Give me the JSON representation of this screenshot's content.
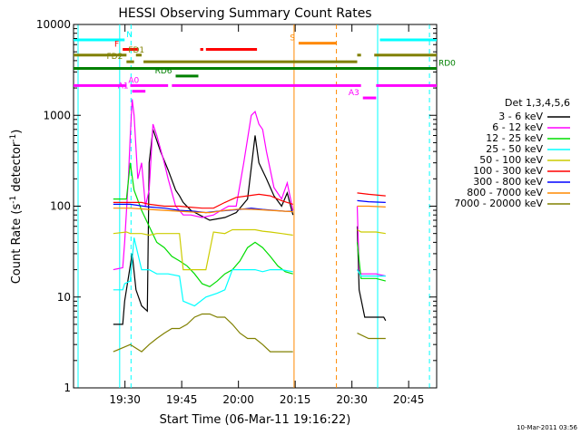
{
  "chart_data": {
    "type": "line",
    "title": "HESSI Observing Summary Count Rates",
    "xlabel": "Start Time (06-Mar-11 19:16:22)",
    "ylabel_main": "Count Rate (s",
    "ylabel_sup1": "-1",
    "ylabel_mid": " detector",
    "ylabel_sup2": "-1",
    "ylabel_end": ")",
    "y_scale": "log",
    "ylim": [
      1,
      10000
    ],
    "xlim_minutes": [
      0,
      96
    ],
    "x_ticks": [
      {
        "label": "19:30",
        "min": 13.6
      },
      {
        "label": "19:45",
        "min": 28.6
      },
      {
        "label": "20:00",
        "min": 43.6
      },
      {
        "label": "20:15",
        "min": 58.6
      },
      {
        "label": "20:30",
        "min": 73.6
      },
      {
        "label": "20:45",
        "min": 88.6
      }
    ],
    "y_ticks": [
      {
        "label": "1",
        "value": 1
      },
      {
        "label": "10",
        "value": 10
      },
      {
        "label": "100",
        "value": 100
      },
      {
        "label": "1000",
        "value": 1000
      },
      {
        "label": "10000",
        "value": 10000
      }
    ],
    "legend_title": "Det 1,3,4,5,6",
    "legend_position": "right",
    "series": [
      {
        "name": "3 - 6 keV",
        "color": "#000000",
        "points": [
          [
            10.5,
            5
          ],
          [
            13,
            5
          ],
          [
            13.5,
            9
          ],
          [
            15.5,
            30
          ],
          [
            16.5,
            12
          ],
          [
            18,
            8
          ],
          [
            19.5,
            7
          ],
          [
            20,
            300
          ],
          [
            21,
            700
          ],
          [
            23,
            400
          ],
          [
            25,
            250
          ],
          [
            27,
            150
          ],
          [
            28,
            130
          ],
          [
            29,
            110
          ],
          [
            31,
            90
          ],
          [
            36,
            70
          ],
          [
            40,
            75
          ],
          [
            43,
            85
          ],
          [
            46,
            120
          ],
          [
            48,
            600
          ],
          [
            49,
            300
          ],
          [
            51,
            200
          ],
          [
            53,
            130
          ],
          [
            55,
            100
          ],
          [
            56.5,
            140
          ],
          [
            58,
            80
          ],
          [
            75,
            60
          ],
          [
            75.5,
            12
          ],
          [
            77,
            6
          ],
          [
            82,
            6
          ],
          [
            82.5,
            5.5
          ]
        ],
        "gaps_after_min": [
          58
        ]
      },
      {
        "name": "6 - 12 keV",
        "color": "#ff00ff",
        "points": [
          [
            10.5,
            20
          ],
          [
            13,
            21
          ],
          [
            13.5,
            40
          ],
          [
            14.5,
            200
          ],
          [
            15,
            600
          ],
          [
            15.5,
            1500
          ],
          [
            16,
            1000
          ],
          [
            17,
            200
          ],
          [
            18,
            300
          ],
          [
            19,
            100
          ],
          [
            20,
            150
          ],
          [
            21,
            800
          ],
          [
            22,
            600
          ],
          [
            24,
            300
          ],
          [
            25,
            200
          ],
          [
            27,
            100
          ],
          [
            29,
            80
          ],
          [
            31,
            80
          ],
          [
            34,
            75
          ],
          [
            37,
            80
          ],
          [
            39,
            90
          ],
          [
            41,
            100
          ],
          [
            43,
            100
          ],
          [
            45,
            300
          ],
          [
            47,
            1000
          ],
          [
            48,
            1100
          ],
          [
            49,
            800
          ],
          [
            50,
            700
          ],
          [
            51,
            400
          ],
          [
            53,
            160
          ],
          [
            55,
            120
          ],
          [
            56.5,
            180
          ],
          [
            58,
            90
          ],
          [
            75,
            100
          ],
          [
            75.5,
            20
          ],
          [
            76,
            18
          ],
          [
            80,
            18
          ],
          [
            82.5,
            17
          ]
        ],
        "gaps_after_min": [
          58
        ]
      },
      {
        "name": "12 - 25 keV",
        "color": "#00dd00",
        "points": [
          [
            10.5,
            120
          ],
          [
            14,
            120
          ],
          [
            15,
            300
          ],
          [
            16,
            150
          ],
          [
            18,
            90
          ],
          [
            20,
            60
          ],
          [
            22,
            40
          ],
          [
            24,
            35
          ],
          [
            26,
            28
          ],
          [
            28,
            25
          ],
          [
            30,
            22
          ],
          [
            32,
            18
          ],
          [
            34,
            14
          ],
          [
            36,
            13
          ],
          [
            38,
            15
          ],
          [
            40,
            18
          ],
          [
            42,
            20
          ],
          [
            44,
            25
          ],
          [
            46,
            35
          ],
          [
            48,
            40
          ],
          [
            50,
            35
          ],
          [
            52,
            28
          ],
          [
            54,
            22
          ],
          [
            56,
            19
          ],
          [
            58,
            18
          ],
          [
            75,
            40
          ],
          [
            76,
            16
          ],
          [
            80,
            16
          ],
          [
            82.5,
            15
          ]
        ],
        "gaps_after_min": [
          58
        ]
      },
      {
        "name": "25 - 50 keV",
        "color": "#00ffff",
        "points": [
          [
            10.5,
            12
          ],
          [
            13,
            12
          ],
          [
            13.5,
            14
          ],
          [
            15,
            15
          ],
          [
            16,
            45
          ],
          [
            17,
            30
          ],
          [
            18,
            20
          ],
          [
            20,
            20
          ],
          [
            22,
            18
          ],
          [
            25,
            18
          ],
          [
            28,
            17
          ],
          [
            29,
            9
          ],
          [
            32,
            8
          ],
          [
            35,
            10
          ],
          [
            38,
            11
          ],
          [
            40,
            12
          ],
          [
            42,
            20
          ],
          [
            45,
            20
          ],
          [
            48,
            20
          ],
          [
            50,
            19
          ],
          [
            52,
            20
          ],
          [
            55,
            20
          ],
          [
            58,
            19
          ],
          [
            75,
            20
          ],
          [
            76,
            17
          ],
          [
            80,
            17
          ],
          [
            82.5,
            17
          ]
        ],
        "gaps_after_min": [
          58
        ]
      },
      {
        "name": "50 - 100 keV",
        "color": "#cccc00",
        "points": [
          [
            10.5,
            50
          ],
          [
            14,
            52
          ],
          [
            15,
            50
          ],
          [
            18,
            50
          ],
          [
            20,
            48
          ],
          [
            22,
            50
          ],
          [
            24,
            50
          ],
          [
            26,
            50
          ],
          [
            28,
            50
          ],
          [
            29,
            20
          ],
          [
            32,
            20
          ],
          [
            35,
            20
          ],
          [
            37,
            52
          ],
          [
            40,
            50
          ],
          [
            42,
            55
          ],
          [
            45,
            55
          ],
          [
            48,
            55
          ],
          [
            50,
            53
          ],
          [
            52,
            52
          ],
          [
            55,
            50
          ],
          [
            58,
            48
          ],
          [
            75,
            55
          ],
          [
            76,
            52
          ],
          [
            80,
            52
          ],
          [
            82.5,
            50
          ]
        ],
        "gaps_after_min": [
          58
        ]
      },
      {
        "name": "100 - 300 keV",
        "color": "#ff0000",
        "points": [
          [
            10.5,
            110
          ],
          [
            15,
            110
          ],
          [
            18,
            110
          ],
          [
            20,
            105
          ],
          [
            24,
            100
          ],
          [
            28,
            100
          ],
          [
            30,
            98
          ],
          [
            34,
            95
          ],
          [
            37,
            95
          ],
          [
            40,
            110
          ],
          [
            43,
            125
          ],
          [
            46,
            130
          ],
          [
            49,
            135
          ],
          [
            52,
            130
          ],
          [
            55,
            115
          ],
          [
            58,
            105
          ],
          [
            75,
            140
          ],
          [
            78,
            135
          ],
          [
            82.5,
            130
          ]
        ],
        "gaps_after_min": [
          58
        ]
      },
      {
        "name": "300 - 800 keV",
        "color": "#0000ff",
        "points": [
          [
            10.5,
            105
          ],
          [
            15,
            105
          ],
          [
            20,
            98
          ],
          [
            24,
            95
          ],
          [
            28,
            90
          ],
          [
            32,
            88
          ],
          [
            35,
            85
          ],
          [
            38,
            88
          ],
          [
            41,
            90
          ],
          [
            44,
            92
          ],
          [
            47,
            95
          ],
          [
            50,
            92
          ],
          [
            53,
            90
          ],
          [
            56,
            88
          ],
          [
            58,
            88
          ],
          [
            75,
            115
          ],
          [
            78,
            112
          ],
          [
            82.5,
            110
          ]
        ],
        "gaps_after_min": [
          58
        ]
      },
      {
        "name": "800 - 7000 keV",
        "color": "#ff8800",
        "points": [
          [
            10.5,
            95
          ],
          [
            15,
            95
          ],
          [
            20,
            92
          ],
          [
            24,
            90
          ],
          [
            28,
            88
          ],
          [
            32,
            86
          ],
          [
            36,
            85
          ],
          [
            40,
            90
          ],
          [
            44,
            93
          ],
          [
            48,
            92
          ],
          [
            52,
            90
          ],
          [
            56,
            88
          ],
          [
            58,
            87
          ],
          [
            75,
            100
          ],
          [
            78,
            100
          ],
          [
            82.5,
            98
          ]
        ],
        "gaps_after_min": [
          58
        ]
      },
      {
        "name": "7000 - 20000 keV",
        "color": "#808000",
        "points": [
          [
            10.5,
            2.5
          ],
          [
            15,
            3
          ],
          [
            18,
            2.5
          ],
          [
            20,
            3
          ],
          [
            22,
            3.5
          ],
          [
            24,
            4
          ],
          [
            26,
            4.5
          ],
          [
            28,
            4.5
          ],
          [
            30,
            5
          ],
          [
            32,
            6
          ],
          [
            34,
            6.5
          ],
          [
            36,
            6.5
          ],
          [
            38,
            6
          ],
          [
            40,
            6
          ],
          [
            42,
            5
          ],
          [
            44,
            4
          ],
          [
            46,
            3.5
          ],
          [
            48,
            3.5
          ],
          [
            50,
            3
          ],
          [
            52,
            2.5
          ],
          [
            54,
            2.5
          ],
          [
            56,
            2.5
          ],
          [
            58,
            2.5
          ],
          [
            75,
            4
          ],
          [
            78,
            3.5
          ],
          [
            82.5,
            3.5
          ]
        ],
        "gaps_after_min": [
          58
        ]
      }
    ],
    "flag_bars": [
      {
        "label": "N",
        "color": "#00ffff",
        "segments": [
          [
            0,
            13.5
          ],
          [
            81,
            96
          ]
        ],
        "level": 0
      },
      {
        "label": "S",
        "color": "#ff8800",
        "segments": [
          [
            59.5,
            69.5
          ]
        ],
        "level": 0.35
      },
      {
        "label": "F",
        "color": "#ff0000",
        "segments": [
          [
            13,
            17
          ],
          [
            33.5,
            34.3
          ],
          [
            35,
            48.5
          ]
        ],
        "level": 1
      },
      {
        "label": "FD1",
        "color": "#808000",
        "segments": [
          [
            0,
            14
          ],
          [
            16.5,
            18
          ],
          [
            75,
            76
          ],
          [
            79.5,
            96
          ]
        ],
        "level": 1.6
      },
      {
        "label": "FD2",
        "color": "#808000",
        "segments": [
          [
            14,
            16
          ],
          [
            18.5,
            75
          ]
        ],
        "level": 2.3
      },
      {
        "label": "RD0",
        "color": "#008000",
        "segments": [
          [
            0,
            96
          ]
        ],
        "level": 3
      },
      {
        "label": "RD6",
        "color": "#008000",
        "segments": [
          [
            27,
            33
          ]
        ],
        "level": 3.8
      },
      {
        "label": "A0",
        "color": "#ff00ff",
        "segments": [
          [
            0,
            14
          ],
          [
            15,
            25
          ],
          [
            26,
            76
          ],
          [
            80,
            96
          ]
        ],
        "level": 4.8
      },
      {
        "label": "A1",
        "color": "#ff00ff",
        "segments": [
          [
            15.5,
            19
          ]
        ],
        "level": 5.4
      },
      {
        "label": "A3",
        "color": "#ff00ff",
        "segments": [
          [
            76.5,
            80
          ]
        ],
        "level": 6.1
      }
    ],
    "vertical_markers": [
      {
        "min": 1.2,
        "color": "#00ffff",
        "style": "solid"
      },
      {
        "min": 12.2,
        "color": "#00ffff",
        "style": "solid"
      },
      {
        "min": 15.2,
        "color": "#00ffff",
        "style": "dashed"
      },
      {
        "min": 58.3,
        "color": "#ff8800",
        "style": "solid"
      },
      {
        "min": 69.5,
        "color": "#ff8800",
        "style": "dashed"
      },
      {
        "min": 80.4,
        "color": "#00ffff",
        "style": "solid"
      },
      {
        "min": 94.1,
        "color": "#00ffff",
        "style": "dashed"
      }
    ],
    "timestamp": "10-Mar-2011 03:56"
  }
}
